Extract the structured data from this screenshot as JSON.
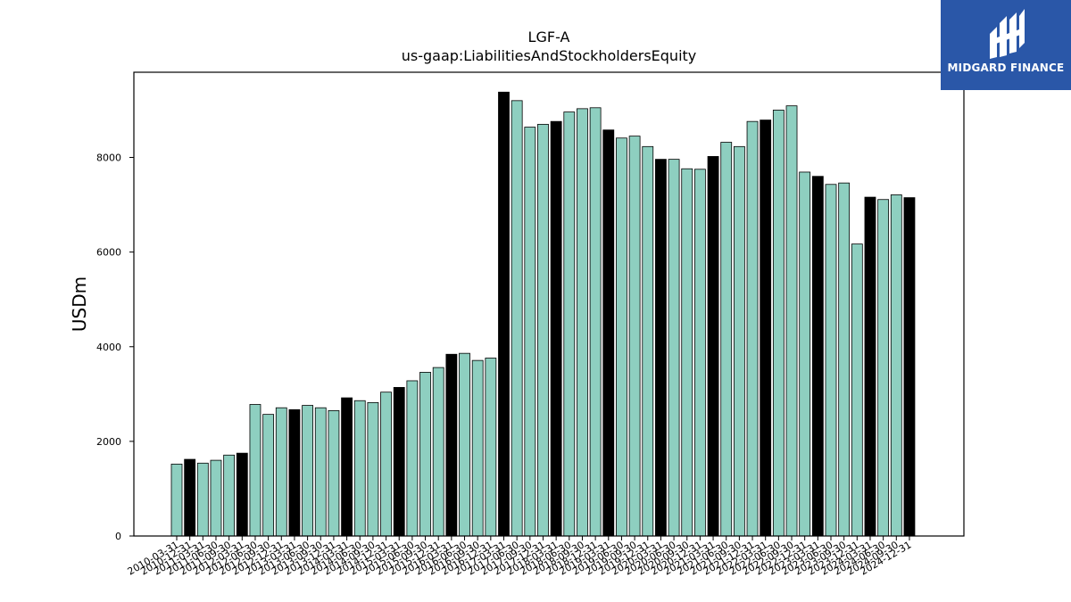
{
  "brand": {
    "name": "MIDGARD FINANCE"
  },
  "chart_data": {
    "type": "bar",
    "title": "LGF-A",
    "subtitle": "us-gaap:LiabilitiesAndStockholdersEquity",
    "xlabel": "",
    "ylabel": "USDm",
    "ylim": [
      0,
      9800
    ],
    "yticks": [
      0,
      2000,
      4000,
      6000,
      8000
    ],
    "grid": false,
    "colors": {
      "quarter": "#8ecfc0",
      "year_end": "#000000",
      "edge": "#000000"
    },
    "categories": [
      "2010-03-31",
      "2010-12-31",
      "2011-03-31",
      "2011-06-30",
      "2011-09-30",
      "2012-03-31",
      "2012-06-30",
      "2012-09-30",
      "2012-12-31",
      "2013-03-31",
      "2013-06-30",
      "2013-09-30",
      "2013-12-31",
      "2014-03-31",
      "2014-06-30",
      "2014-09-30",
      "2014-12-31",
      "2015-03-31",
      "2015-06-30",
      "2015-09-30",
      "2015-12-31",
      "2016-03-31",
      "2016-06-30",
      "2016-09-30",
      "2016-12-31",
      "2017-03-31",
      "2017-06-30",
      "2017-09-30",
      "2017-12-31",
      "2018-03-31",
      "2018-06-30",
      "2018-09-30",
      "2018-12-31",
      "2019-03-31",
      "2019-06-30",
      "2019-09-30",
      "2019-12-31",
      "2020-03-31",
      "2020-06-30",
      "2020-09-30",
      "2020-12-31",
      "2021-03-31",
      "2021-06-30",
      "2021-09-30",
      "2021-12-31",
      "2022-03-31",
      "2022-06-30",
      "2022-09-30",
      "2022-12-31",
      "2023-03-31",
      "2023-06-30",
      "2023-09-30",
      "2023-12-31",
      "2024-03-31",
      "2024-06-30",
      "2024-09-30",
      "2024-12-31"
    ],
    "values": [
      1520,
      1620,
      1540,
      1600,
      1710,
      1750,
      2780,
      2570,
      2710,
      2670,
      2760,
      2710,
      2650,
      2920,
      2860,
      2820,
      3040,
      3140,
      3280,
      3460,
      3560,
      3840,
      3860,
      3710,
      3760,
      9380,
      9200,
      8640,
      8700,
      8760,
      8960,
      9030,
      9050,
      8580,
      8410,
      8450,
      8230,
      7960,
      7960,
      7760,
      7750,
      8020,
      8320,
      8230,
      8760,
      8790,
      9000,
      9090,
      7690,
      7600,
      7430,
      7460,
      6170,
      7160,
      7110,
      7210,
      7150
    ],
    "year_end": [
      false,
      true,
      false,
      false,
      false,
      true,
      false,
      false,
      false,
      true,
      false,
      false,
      false,
      true,
      false,
      false,
      false,
      true,
      false,
      false,
      false,
      true,
      false,
      false,
      false,
      true,
      false,
      false,
      false,
      true,
      false,
      false,
      false,
      true,
      false,
      false,
      false,
      true,
      false,
      false,
      false,
      true,
      false,
      false,
      false,
      true,
      false,
      false,
      false,
      true,
      false,
      false,
      false,
      true,
      false,
      false,
      true
    ]
  }
}
